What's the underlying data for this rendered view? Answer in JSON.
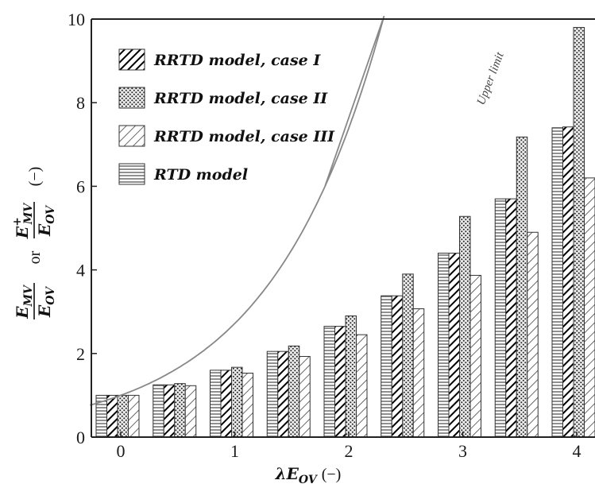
{
  "chart_data": {
    "type": "bar",
    "x_values": [
      0,
      0.5,
      1,
      1.5,
      2,
      2.5,
      3,
      3.5,
      4
    ],
    "xticks": [
      "0",
      "1",
      "2",
      "3",
      "4"
    ],
    "yticks": [
      "0",
      "2",
      "4",
      "6",
      "8",
      "10"
    ],
    "ylim": [
      0,
      10
    ],
    "xlim": [
      -0.27,
      4.2
    ],
    "series": [
      {
        "name": "RTD model",
        "pattern": "horizontal-lines",
        "values": [
          1.0,
          1.25,
          1.6,
          2.05,
          2.65,
          3.38,
          4.4,
          5.7,
          7.4
        ]
      },
      {
        "name": "RRTD model, case I",
        "pattern": "thick-diagonal",
        "values": [
          1.0,
          1.25,
          1.6,
          2.05,
          2.65,
          3.38,
          4.4,
          5.7,
          7.42
        ]
      },
      {
        "name": "RRTD model, case II",
        "pattern": "dots",
        "values": [
          1.0,
          1.28,
          1.67,
          2.18,
          2.9,
          3.9,
          5.28,
          7.18,
          9.8
        ]
      },
      {
        "name": "RRTD model, case III",
        "pattern": "thin-diagonal",
        "values": [
          1.0,
          1.23,
          1.53,
          1.93,
          2.45,
          3.07,
          3.87,
          4.9,
          6.2
        ]
      }
    ],
    "legend_order": [
      "RRTD model, case I",
      "RRTD model, case II",
      "RRTD model, case III",
      "RTD model"
    ],
    "legend_position": "top-left",
    "upper_limit_label": "Upper limit",
    "xlabel": {
      "main": "λE",
      "sub": "OV",
      "unit": "(−)"
    },
    "ylabel": {
      "num1": "E",
      "num1_sub": "MV",
      "den": "E",
      "den_sub": "OV",
      "or": "or",
      "num2": "E",
      "num2_sup": "+",
      "num2_sub": "MV",
      "unit": "(−)"
    },
    "grid": false
  }
}
